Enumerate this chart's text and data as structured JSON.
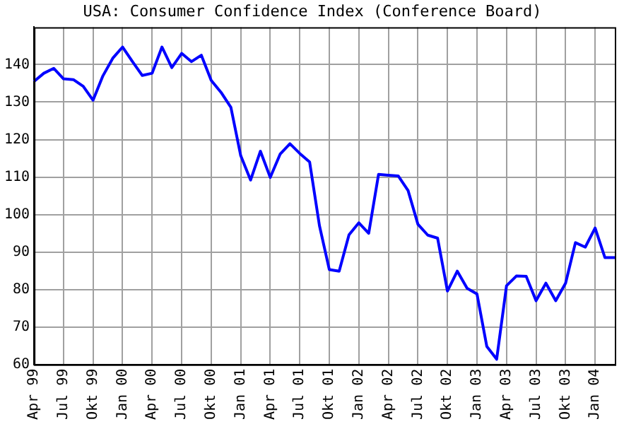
{
  "chart_data": {
    "type": "line",
    "title": "USA: Consumer Confidence Index (Conference Board)",
    "categories": [
      "Apr 99",
      null,
      null,
      "Jul 99",
      null,
      null,
      "Okt 99",
      null,
      null,
      "Jan 00",
      null,
      null,
      "Apr 00",
      null,
      null,
      "Jul 00",
      null,
      null,
      "Okt 00",
      null,
      null,
      "Jan 01",
      null,
      null,
      "Apr 01",
      null,
      null,
      "Jul 01",
      null,
      null,
      "Okt 01",
      null,
      null,
      "Jan 02",
      null,
      null,
      "Apr 02",
      null,
      null,
      "Jul 02",
      null,
      null,
      "Okt 02",
      null,
      null,
      "Jan 03",
      null,
      null,
      "Apr 03",
      null,
      null,
      "Jul 03",
      null,
      null,
      "Okt 03",
      null,
      null,
      "Jan 04",
      null,
      null
    ],
    "series": [
      {
        "color": "#0000ff",
        "values": [
          135.5,
          137.7,
          139,
          136.2,
          136,
          134.2,
          130.5,
          137,
          141.7,
          144.7,
          140.8,
          137.1,
          137.7,
          144.7,
          139.2,
          143,
          140.8,
          142.5,
          135.8,
          132.6,
          128.6,
          115.7,
          109.2,
          116.9,
          109.9,
          116.1,
          118.9,
          116.3,
          114,
          97,
          85.3,
          84.9,
          94.6,
          97.8,
          95,
          110.7,
          110.5,
          110.3,
          106.4,
          97.4,
          94.5,
          93.7,
          79.6,
          84.9,
          80.3,
          78.8,
          64.8,
          61.4,
          81,
          83.6,
          83.5,
          77,
          81.7,
          77,
          81.7,
          92.5,
          91.3,
          96.4,
          88.5,
          88.5
        ]
      }
    ],
    "ylim": [
      60,
      150
    ],
    "yticks": [
      60,
      70,
      80,
      90,
      100,
      110,
      120,
      130,
      140
    ],
    "grid": true,
    "legend": false,
    "marker": "none",
    "line_style": "solid"
  }
}
